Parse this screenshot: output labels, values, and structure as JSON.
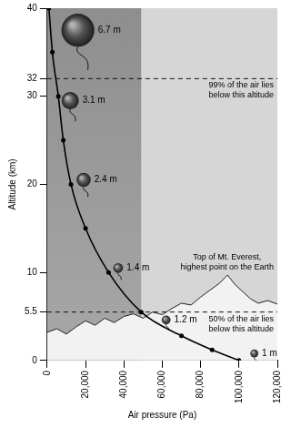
{
  "chart_data": {
    "type": "line",
    "x_label": "Air pressure (Pa)",
    "y_label": "Altitude (km)",
    "xlim": [
      0,
      120000
    ],
    "xticks": [
      0,
      {
        "value": 20000,
        "label": "20,000"
      },
      {
        "value": 40000,
        "label": "40,000"
      },
      {
        "value": 60000,
        "label": "60,000"
      },
      {
        "value": 80000,
        "label": "80,000"
      },
      {
        "value": 100000,
        "label": "100,000"
      },
      {
        "value": 120000,
        "label": "120,000"
      }
    ],
    "ylim": [
      0,
      40
    ],
    "yticks": [
      0,
      5.5,
      10,
      20,
      30,
      32,
      40
    ],
    "grid": false,
    "series": [
      {
        "color": "#000000",
        "marker": "circle",
        "x": [
          900,
          2700,
          5800,
          8400,
          12400,
          20000,
          32000,
          49000,
          70000,
          86000,
          100000
        ],
        "values": [
          40,
          35,
          30,
          25,
          20,
          15,
          10,
          5.5,
          2.8,
          1.2,
          0
        ]
      },
      {
        "type": "area",
        "color": "#f2f2f2",
        "x": [
          0,
          5000,
          10000,
          15000,
          20000,
          25000,
          30000,
          35000,
          40000,
          45000,
          50000,
          55000,
          60000,
          65000,
          70000,
          75000,
          80000,
          85000,
          90000,
          94000,
          98000,
          102000,
          106000,
          110000,
          115000,
          120000
        ],
        "values": [
          3.2,
          3.6,
          3.0,
          3.8,
          4.5,
          4.0,
          4.8,
          4.3,
          5.0,
          5.3,
          4.8,
          5.5,
          5.2,
          5.9,
          6.5,
          6.3,
          7.2,
          8.0,
          8.8,
          9.7,
          8.6,
          7.8,
          7.0,
          6.5,
          6.8,
          6.4
        ],
        "peak_label": [
          "Top of Mt. Everest,",
          "highest point on the Earth"
        ]
      }
    ],
    "reference_lines": [
      {
        "y": 32,
        "line_style": "dashed",
        "text": [
          "99% of the air lies",
          "below this altitude"
        ]
      },
      {
        "y": 5.5,
        "line_style": "dashed",
        "text": [
          "50% of the air lies",
          "below this altitude"
        ]
      }
    ],
    "balloons": [
      {
        "x": 16000,
        "y": 37.5,
        "size": 6.7,
        "label": "6.7 m"
      },
      {
        "x": 12000,
        "y": 29.5,
        "size": 3.1,
        "label": "3.1 m"
      },
      {
        "x": 19000,
        "y": 20.5,
        "size": 2.4,
        "label": "2.4 m"
      },
      {
        "x": 37000,
        "y": 10.5,
        "size": 1.4,
        "label": "1.4 m"
      },
      {
        "x": 62000,
        "y": 4.6,
        "size": 1.2,
        "label": "1.2 m"
      },
      {
        "x": 108000,
        "y": 0.8,
        "size": 1,
        "label": "1 m"
      }
    ]
  }
}
